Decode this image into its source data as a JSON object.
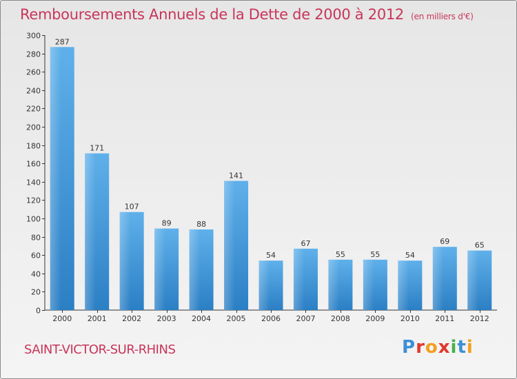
{
  "chart_data": {
    "type": "bar",
    "title": "Remboursements Annuels de la Dette de 2000 à 2012",
    "unit_note": "(en milliers d'€)",
    "categories": [
      "2000",
      "2001",
      "2002",
      "2003",
      "2004",
      "2005",
      "2006",
      "2007",
      "2008",
      "2009",
      "2010",
      "2011",
      "2012"
    ],
    "values": [
      287,
      171,
      107,
      89,
      88,
      141,
      54,
      67,
      55,
      55,
      54,
      69,
      65
    ],
    "ylim": [
      0,
      300
    ],
    "yticks": [
      0,
      20,
      40,
      60,
      80,
      100,
      120,
      140,
      160,
      180,
      200,
      220,
      240,
      260,
      280,
      300
    ],
    "grid": false,
    "bar_color": "#3f95d8",
    "xlabel": "",
    "ylabel": ""
  },
  "footer": {
    "city": "SAINT-VICTOR-SUR-RHINS",
    "logo_letters": [
      "P",
      "r",
      "o",
      "x",
      "i",
      "t",
      "i"
    ],
    "logo_colors": [
      "#3d8fd6",
      "#e2382d",
      "#f0a020",
      "#e2382d",
      "#48b14a",
      "#3d8fd6",
      "#f0a020"
    ]
  },
  "colors": {
    "title": "#c8355a",
    "axis": "#333333"
  }
}
